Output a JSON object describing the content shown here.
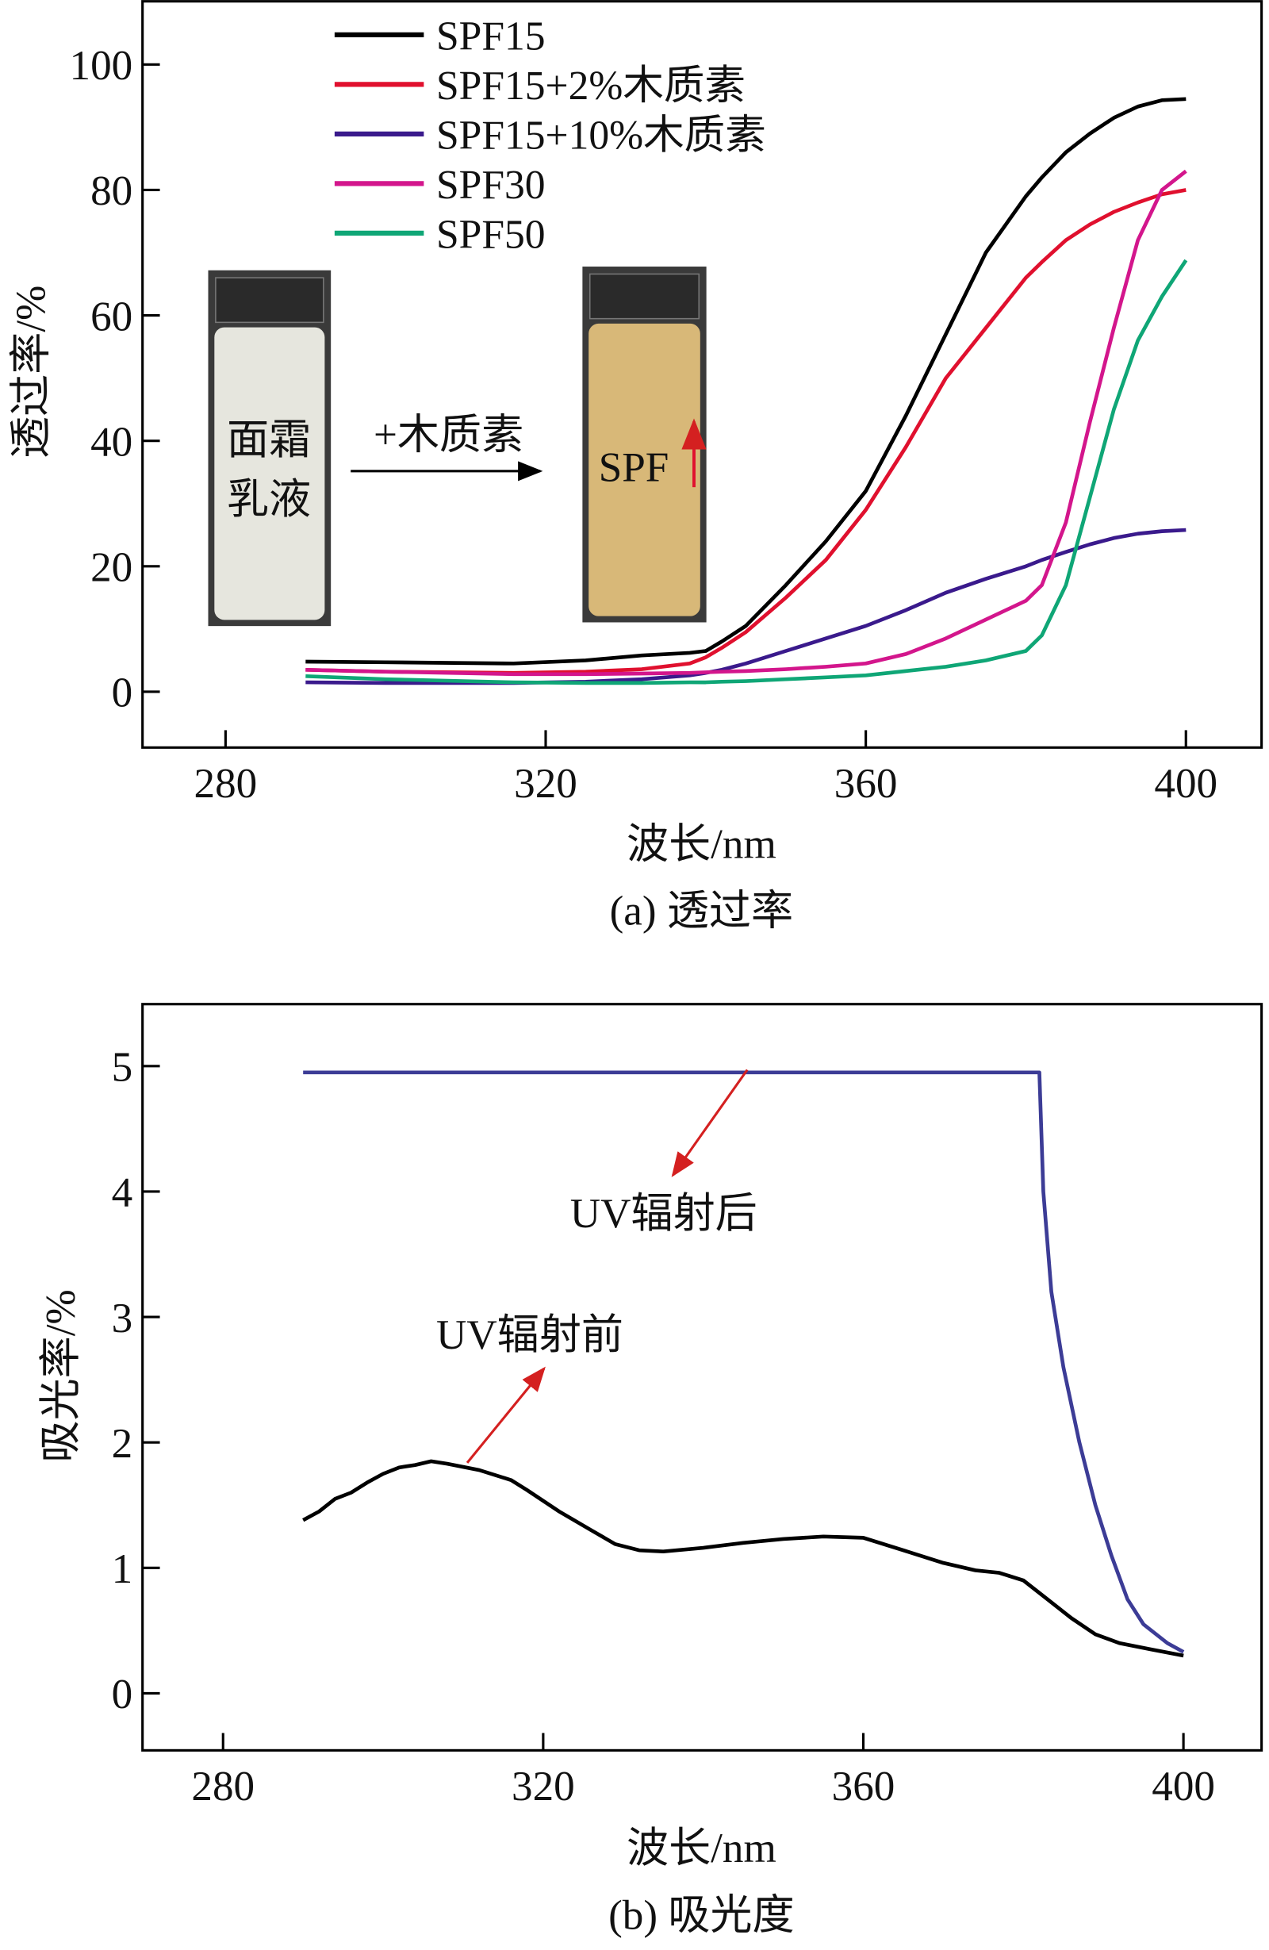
{
  "chart_data": [
    {
      "type": "line",
      "caption": "(a) 透过率",
      "xlabel": "波长/nm",
      "ylabel": "透过率/%",
      "xlim": [
        270,
        410
      ],
      "ylim": [
        -9,
        110
      ],
      "xticks": [
        "280",
        "320",
        "360",
        "400"
      ],
      "xtick_values": [
        280,
        320,
        360,
        400
      ],
      "yticks": [
        "0",
        "20",
        "40",
        "60",
        "80",
        "100"
      ],
      "ytick_values": [
        0,
        20,
        40,
        60,
        80,
        100
      ],
      "grid": false,
      "legend_position": "top-left",
      "x": [
        290,
        300,
        316,
        325,
        332,
        338,
        340,
        342,
        345,
        350,
        355,
        360,
        365,
        370,
        375,
        380,
        382,
        385,
        388,
        391,
        394,
        397,
        400
      ],
      "series": [
        {
          "name": "SPF15",
          "color": "#000000",
          "values": [
            4.8,
            4.7,
            4.5,
            5,
            5.8,
            6.2,
            6.5,
            8,
            10.5,
            17,
            24,
            32,
            44,
            57,
            70,
            79,
            82,
            86,
            89,
            91.5,
            93.3,
            94.3,
            94.5
          ]
        },
        {
          "name": "SPF15+2%木质素",
          "color": "#e0102e",
          "values": [
            3.5,
            3.2,
            3,
            3.2,
            3.6,
            4.5,
            5.5,
            7,
            9.5,
            15,
            21,
            29,
            39,
            50,
            58,
            66,
            68.5,
            72,
            74.5,
            76.5,
            78,
            79.3,
            80
          ]
        },
        {
          "name": "SPF15+10%木质素",
          "color": "#3a1a8c",
          "values": [
            1.5,
            1.4,
            1.4,
            1.6,
            2,
            2.6,
            3,
            3.5,
            4.5,
            6.5,
            8.5,
            10.5,
            13,
            15.8,
            18,
            20,
            21,
            22.3,
            23.5,
            24.5,
            25.2,
            25.6,
            25.8
          ]
        },
        {
          "name": "SPF30",
          "color": "#d3168c",
          "values": [
            3.5,
            3.2,
            2.8,
            2.8,
            2.9,
            3,
            3.1,
            3.2,
            3.3,
            3.6,
            4,
            4.5,
            6,
            8.5,
            11.5,
            14.5,
            17,
            27,
            43,
            58,
            72,
            80,
            83
          ]
        },
        {
          "name": "SPF50",
          "color": "#0fa676",
          "values": [
            2.5,
            2,
            1.5,
            1.4,
            1.4,
            1.5,
            1.5,
            1.6,
            1.7,
            2,
            2.3,
            2.6,
            3.3,
            4,
            5,
            6.5,
            9,
            17,
            31,
            45,
            56,
            63,
            68.8
          ]
        }
      ],
      "inset": {
        "before_label": [
          "面霜",
          "乳液"
        ],
        "arrow_label": "+木质素",
        "after_label": "SPF",
        "before_color": "#e6e6de",
        "after_color": "#d8b878",
        "up_arrow_color": "#e0102e"
      }
    },
    {
      "type": "line",
      "caption": "(b) 吸光度",
      "xlabel": "波长/nm",
      "ylabel": "吸光率/%",
      "xlim": [
        270,
        410
      ],
      "ylim": [
        -0.45,
        5.5
      ],
      "xticks": [
        "280",
        "320",
        "360",
        "400"
      ],
      "xtick_values": [
        280,
        320,
        360,
        400
      ],
      "yticks": [
        "0",
        "1",
        "2",
        "3",
        "4",
        "5"
      ],
      "ytick_values": [
        0,
        1,
        2,
        3,
        4,
        5
      ],
      "grid": false,
      "series": [
        {
          "name": "UV辐射后",
          "color": "#3c3c96",
          "x": [
            290,
            320,
            350,
            382,
            382.5,
            383.5,
            385,
            387,
            389,
            391,
            393,
            395,
            398,
            400
          ],
          "values": [
            4.95,
            4.95,
            4.95,
            4.95,
            4.0,
            3.2,
            2.6,
            2.0,
            1.5,
            1.1,
            0.75,
            0.55,
            0.4,
            0.33
          ]
        },
        {
          "name": "UV辐射前",
          "color": "#000000",
          "x": [
            290,
            292,
            294,
            296,
            298,
            300,
            302,
            304,
            306,
            308,
            312,
            316,
            318,
            322,
            326,
            329,
            332,
            335,
            340,
            345,
            350,
            355,
            360,
            365,
            370,
            374,
            377,
            380,
            383,
            386,
            389,
            392,
            396,
            400
          ],
          "values": [
            1.38,
            1.45,
            1.55,
            1.6,
            1.68,
            1.75,
            1.8,
            1.82,
            1.85,
            1.83,
            1.78,
            1.7,
            1.62,
            1.45,
            1.3,
            1.19,
            1.14,
            1.13,
            1.16,
            1.2,
            1.23,
            1.25,
            1.24,
            1.14,
            1.04,
            0.98,
            0.96,
            0.9,
            0.75,
            0.6,
            0.47,
            0.4,
            0.35,
            0.3
          ]
        }
      ],
      "annotation_color": "#d42020"
    }
  ]
}
